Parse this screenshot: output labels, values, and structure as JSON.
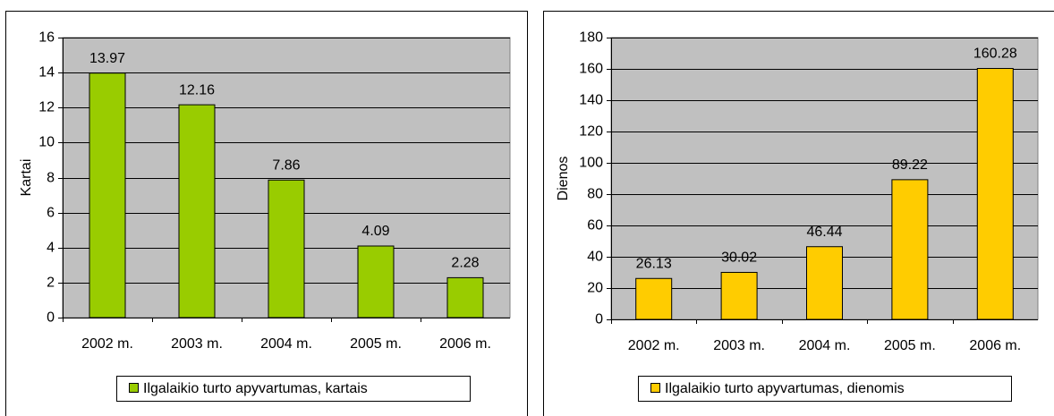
{
  "chart_data": [
    {
      "type": "bar",
      "y_label": "Kartai",
      "categories": [
        "2002 m.",
        "2003 m.",
        "2004 m.",
        "2005 m.",
        "2006 m."
      ],
      "series": [
        {
          "name": "Ilgalaikio turto apyvartumas, kartais",
          "color": "#99cc00",
          "values": [
            13.97,
            12.16,
            7.86,
            4.09,
            2.28
          ]
        }
      ],
      "ylim": [
        0,
        16
      ],
      "yticks": [
        0,
        2,
        4,
        6,
        8,
        10,
        12,
        14,
        16
      ],
      "grid": true,
      "legend": "bottom"
    },
    {
      "type": "bar",
      "y_label": "Dienos",
      "categories": [
        "2002 m.",
        "2003 m.",
        "2004 m.",
        "2005 m.",
        "2006 m."
      ],
      "series": [
        {
          "name": "Ilgalaikio turto apyvartumas, dienomis",
          "color": "#ffcc00",
          "values": [
            26.13,
            30.02,
            46.44,
            89.22,
            160.28
          ]
        }
      ],
      "ylim": [
        0,
        180
      ],
      "yticks": [
        0,
        20,
        40,
        60,
        80,
        100,
        120,
        140,
        160,
        180
      ],
      "grid": true,
      "legend": "bottom"
    }
  ]
}
